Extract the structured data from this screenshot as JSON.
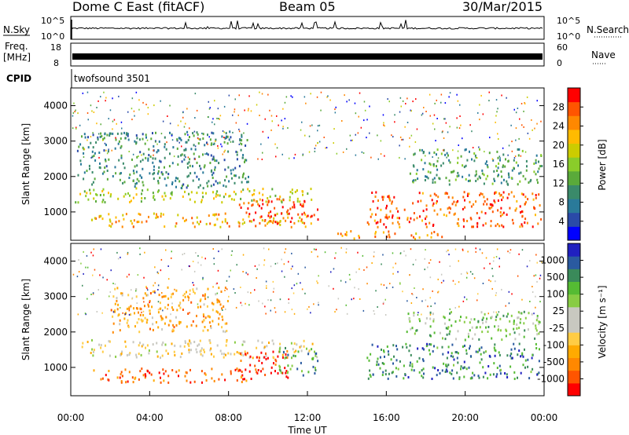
{
  "header": {
    "station": "Dome C East (fitACF)",
    "beam": "Beam 05",
    "date": "30/Mar/2015"
  },
  "status_panels": {
    "nsky_label": "N.Sky",
    "nsky_ticks": [
      "10^5",
      "10^0"
    ],
    "nsearch_label": "N.Search",
    "nsearch_ticks": [
      "10^5",
      "10^0"
    ],
    "freq_label": "Freq.",
    "freq_unit": "[MHz]",
    "freq_ticks": [
      "18",
      "8"
    ],
    "nave_label": "Nave",
    "nave_ticks": [
      "60",
      "0"
    ],
    "cpid_label": "CPID",
    "cpid_value": "twofsound 3501"
  },
  "chart_data": [
    {
      "type": "heatmap",
      "name": "power",
      "ylabel": "Slant Range [km]",
      "yticks": [
        1000,
        2000,
        3000,
        4000
      ],
      "ylim": [
        200,
        4500
      ],
      "xlim": [
        0,
        24
      ],
      "colorbar_label": "Power [dB]",
      "colorbar_ticks": [
        "28",
        "24",
        "20",
        "16",
        "12",
        "8",
        "4"
      ],
      "colors": [
        "#0000ff",
        "#2a4aa8",
        "#2a7a9a",
        "#3a8a6a",
        "#5aaa3a",
        "#8acc2a",
        "#cccc00",
        "#ffbb00",
        "#ff8800",
        "#ff5500",
        "#ff0000"
      ],
      "regions": [
        {
          "t0": 0.2,
          "t1": 12.5,
          "r0": 1300,
          "r1": 1700,
          "level": 0.55
        },
        {
          "t0": 1.0,
          "t1": 12.5,
          "r0": 600,
          "r1": 1000,
          "level": 0.7
        },
        {
          "t0": 8.5,
          "t1": 12.5,
          "r0": 700,
          "r1": 1400,
          "level": 0.9
        },
        {
          "t0": 15.0,
          "t1": 24,
          "r0": 600,
          "r1": 1600,
          "level": 0.85
        },
        {
          "t0": 0.3,
          "t1": 9.0,
          "r0": 1700,
          "r1": 3300,
          "level": 0.3
        },
        {
          "t0": 13.5,
          "t1": 19.0,
          "r0": 250,
          "r1": 500,
          "level": 0.75
        },
        {
          "t0": 17.0,
          "t1": 24,
          "r0": 1800,
          "r1": 2800,
          "level": 0.35
        }
      ]
    },
    {
      "type": "heatmap",
      "name": "velocity",
      "ylabel": "Slant Range [km]",
      "yticks": [
        1000,
        2000,
        3000,
        4000
      ],
      "ylim": [
        200,
        4500
      ],
      "xlim": [
        0,
        24
      ],
      "xlabel": "Time UT",
      "xticks": [
        "00:00",
        "04:00",
        "08:00",
        "12:00",
        "16:00",
        "20:00",
        "00:00"
      ],
      "colorbar_label": "Velocity [m s⁻¹]",
      "colorbar_ticks": [
        "1000",
        "500",
        "100",
        "25",
        "-25",
        "-100",
        "-500",
        "-1000"
      ],
      "colors": [
        "#ff0000",
        "#ff5500",
        "#ff8800",
        "#ffaa00",
        "#ffcc44",
        "#c8c8c0",
        "#c8c8c0",
        "#88cc44",
        "#55bb33",
        "#3a8a5a",
        "#2a5aa0",
        "#2020c0"
      ],
      "regions": [
        {
          "t0": 0.5,
          "t1": 12.5,
          "r0": 1300,
          "r1": 1800,
          "level": 0.45
        },
        {
          "t0": 1.0,
          "t1": 9.0,
          "r0": 600,
          "r1": 1000,
          "level": 0.15
        },
        {
          "t0": 8.5,
          "t1": 11.0,
          "r0": 700,
          "r1": 1500,
          "level": 0.05
        },
        {
          "t0": 10.5,
          "t1": 12.5,
          "r0": 800,
          "r1": 1600,
          "level": 0.75
        },
        {
          "t0": 15.0,
          "t1": 24,
          "r0": 700,
          "r1": 1700,
          "level": 0.8
        },
        {
          "t0": 2.0,
          "t1": 8.0,
          "r0": 2000,
          "r1": 3300,
          "level": 0.3
        },
        {
          "t0": 17.0,
          "t1": 24,
          "r0": 1800,
          "r1": 2600,
          "level": 0.65
        }
      ]
    }
  ]
}
